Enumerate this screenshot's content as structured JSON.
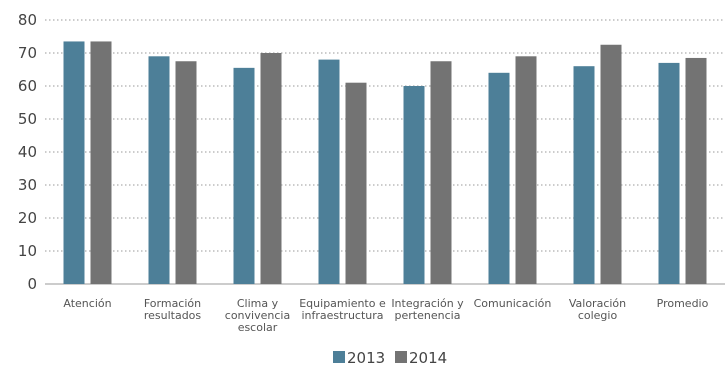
{
  "chart_data": {
    "type": "bar",
    "categories": [
      [
        "Atención"
      ],
      [
        "Formación",
        "resultados"
      ],
      [
        "Clima y",
        "convivencia",
        "escolar"
      ],
      [
        "Equipamiento e",
        "infraestructura"
      ],
      [
        "Integración y",
        "pertenencia"
      ],
      [
        "Comunicación"
      ],
      [
        "Valoración",
        "colegio"
      ],
      [
        "Promedio"
      ]
    ],
    "series": [
      {
        "name": "2013",
        "color": "#4d7f98",
        "values": [
          73.5,
          69,
          65.5,
          68,
          60,
          64,
          66,
          67
        ]
      },
      {
        "name": "2014",
        "color": "#737373",
        "values": [
          73.5,
          67.5,
          70,
          61,
          67.5,
          69,
          72.5,
          68.5
        ]
      }
    ],
    "ylim": [
      0,
      80
    ],
    "yticks": [
      0,
      10,
      20,
      30,
      40,
      50,
      60,
      70,
      80
    ],
    "grid": true,
    "legend": "bottom-center",
    "title": "",
    "xlabel": "",
    "ylabel": ""
  }
}
